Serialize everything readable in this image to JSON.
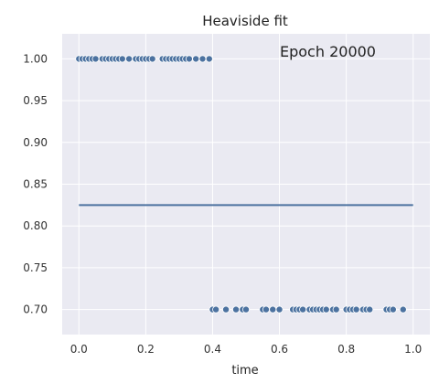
{
  "chart_data": {
    "type": "scatter",
    "title": "Heaviside fit",
    "annotation": "Epoch 20000",
    "xlabel": "time",
    "ylabel": "",
    "xlim": [
      -0.05,
      1.05
    ],
    "ylim": [
      0.67,
      1.03
    ],
    "xticks": [
      "0.0",
      "0.2",
      "0.4",
      "0.6",
      "0.8",
      "1.0"
    ],
    "yticks": [
      "0.70",
      "0.75",
      "0.80",
      "0.85",
      "0.90",
      "0.95",
      "1.00"
    ],
    "grid": true,
    "background": "#eaeaf2",
    "series": [
      {
        "type": "scatter",
        "color": "#4c72a0",
        "points": [
          [
            0.0,
            1.0
          ],
          [
            0.01,
            1.0
          ],
          [
            0.02,
            1.0
          ],
          [
            0.03,
            1.0
          ],
          [
            0.04,
            1.0
          ],
          [
            0.05,
            1.0
          ],
          [
            0.07,
            1.0
          ],
          [
            0.08,
            1.0
          ],
          [
            0.09,
            1.0
          ],
          [
            0.1,
            1.0
          ],
          [
            0.11,
            1.0
          ],
          [
            0.12,
            1.0
          ],
          [
            0.13,
            1.0
          ],
          [
            0.15,
            1.0
          ],
          [
            0.17,
            1.0
          ],
          [
            0.18,
            1.0
          ],
          [
            0.19,
            1.0
          ],
          [
            0.2,
            1.0
          ],
          [
            0.21,
            1.0
          ],
          [
            0.22,
            1.0
          ],
          [
            0.25,
            1.0
          ],
          [
            0.26,
            1.0
          ],
          [
            0.27,
            1.0
          ],
          [
            0.28,
            1.0
          ],
          [
            0.29,
            1.0
          ],
          [
            0.3,
            1.0
          ],
          [
            0.31,
            1.0
          ],
          [
            0.32,
            1.0
          ],
          [
            0.33,
            1.0
          ],
          [
            0.35,
            1.0
          ],
          [
            0.37,
            1.0
          ],
          [
            0.39,
            1.0
          ],
          [
            0.4,
            0.7
          ],
          [
            0.41,
            0.7
          ],
          [
            0.44,
            0.7
          ],
          [
            0.47,
            0.7
          ],
          [
            0.49,
            0.7
          ],
          [
            0.5,
            0.7
          ],
          [
            0.55,
            0.7
          ],
          [
            0.56,
            0.7
          ],
          [
            0.58,
            0.7
          ],
          [
            0.6,
            0.7
          ],
          [
            0.64,
            0.7
          ],
          [
            0.65,
            0.7
          ],
          [
            0.66,
            0.7
          ],
          [
            0.67,
            0.7
          ],
          [
            0.69,
            0.7
          ],
          [
            0.7,
            0.7
          ],
          [
            0.71,
            0.7
          ],
          [
            0.72,
            0.7
          ],
          [
            0.73,
            0.7
          ],
          [
            0.74,
            0.7
          ],
          [
            0.76,
            0.7
          ],
          [
            0.77,
            0.7
          ],
          [
            0.8,
            0.7
          ],
          [
            0.81,
            0.7
          ],
          [
            0.82,
            0.7
          ],
          [
            0.83,
            0.7
          ],
          [
            0.85,
            0.7
          ],
          [
            0.86,
            0.7
          ],
          [
            0.87,
            0.7
          ],
          [
            0.92,
            0.7
          ],
          [
            0.93,
            0.7
          ],
          [
            0.94,
            0.7
          ],
          [
            0.97,
            0.7
          ]
        ]
      },
      {
        "type": "line",
        "color": "#4c72a0",
        "x": [
          0.0,
          1.0
        ],
        "y": [
          0.825,
          0.825
        ]
      }
    ]
  }
}
